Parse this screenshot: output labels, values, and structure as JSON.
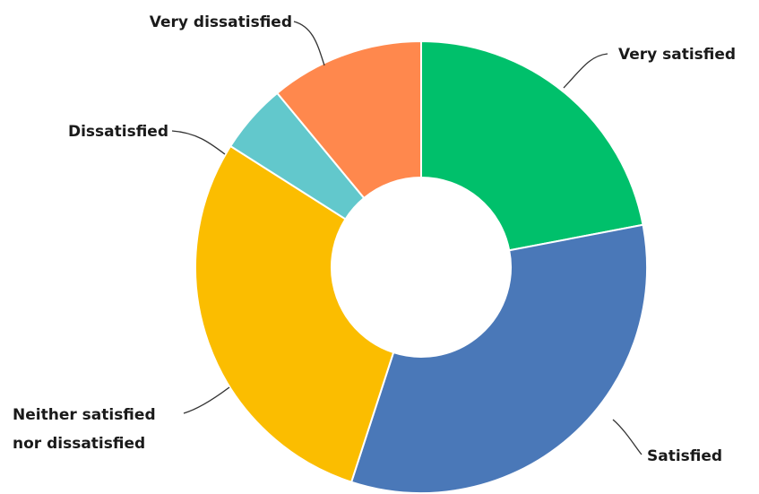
{
  "chart_data": {
    "type": "pie",
    "subtype": "donut",
    "title": "",
    "legend": "none",
    "categories": [
      "Very satisfied",
      "Satisfied",
      "Neither satisfied nor dissatisfied",
      "Dissatisfied",
      "Very dissatisfied"
    ],
    "values": [
      22,
      33,
      29,
      5,
      11
    ],
    "colors": [
      "#00c06b",
      "#4a78b8",
      "#fbbd00",
      "#62c8cc",
      "#ff884d"
    ],
    "labels": [
      [
        "Very satisfied"
      ],
      [
        "Satisfied"
      ],
      [
        "Neither satisfied",
        "nor dissatisfied"
      ],
      [
        "Dissatisfied"
      ],
      [
        "Very dissatisfied"
      ]
    ]
  }
}
